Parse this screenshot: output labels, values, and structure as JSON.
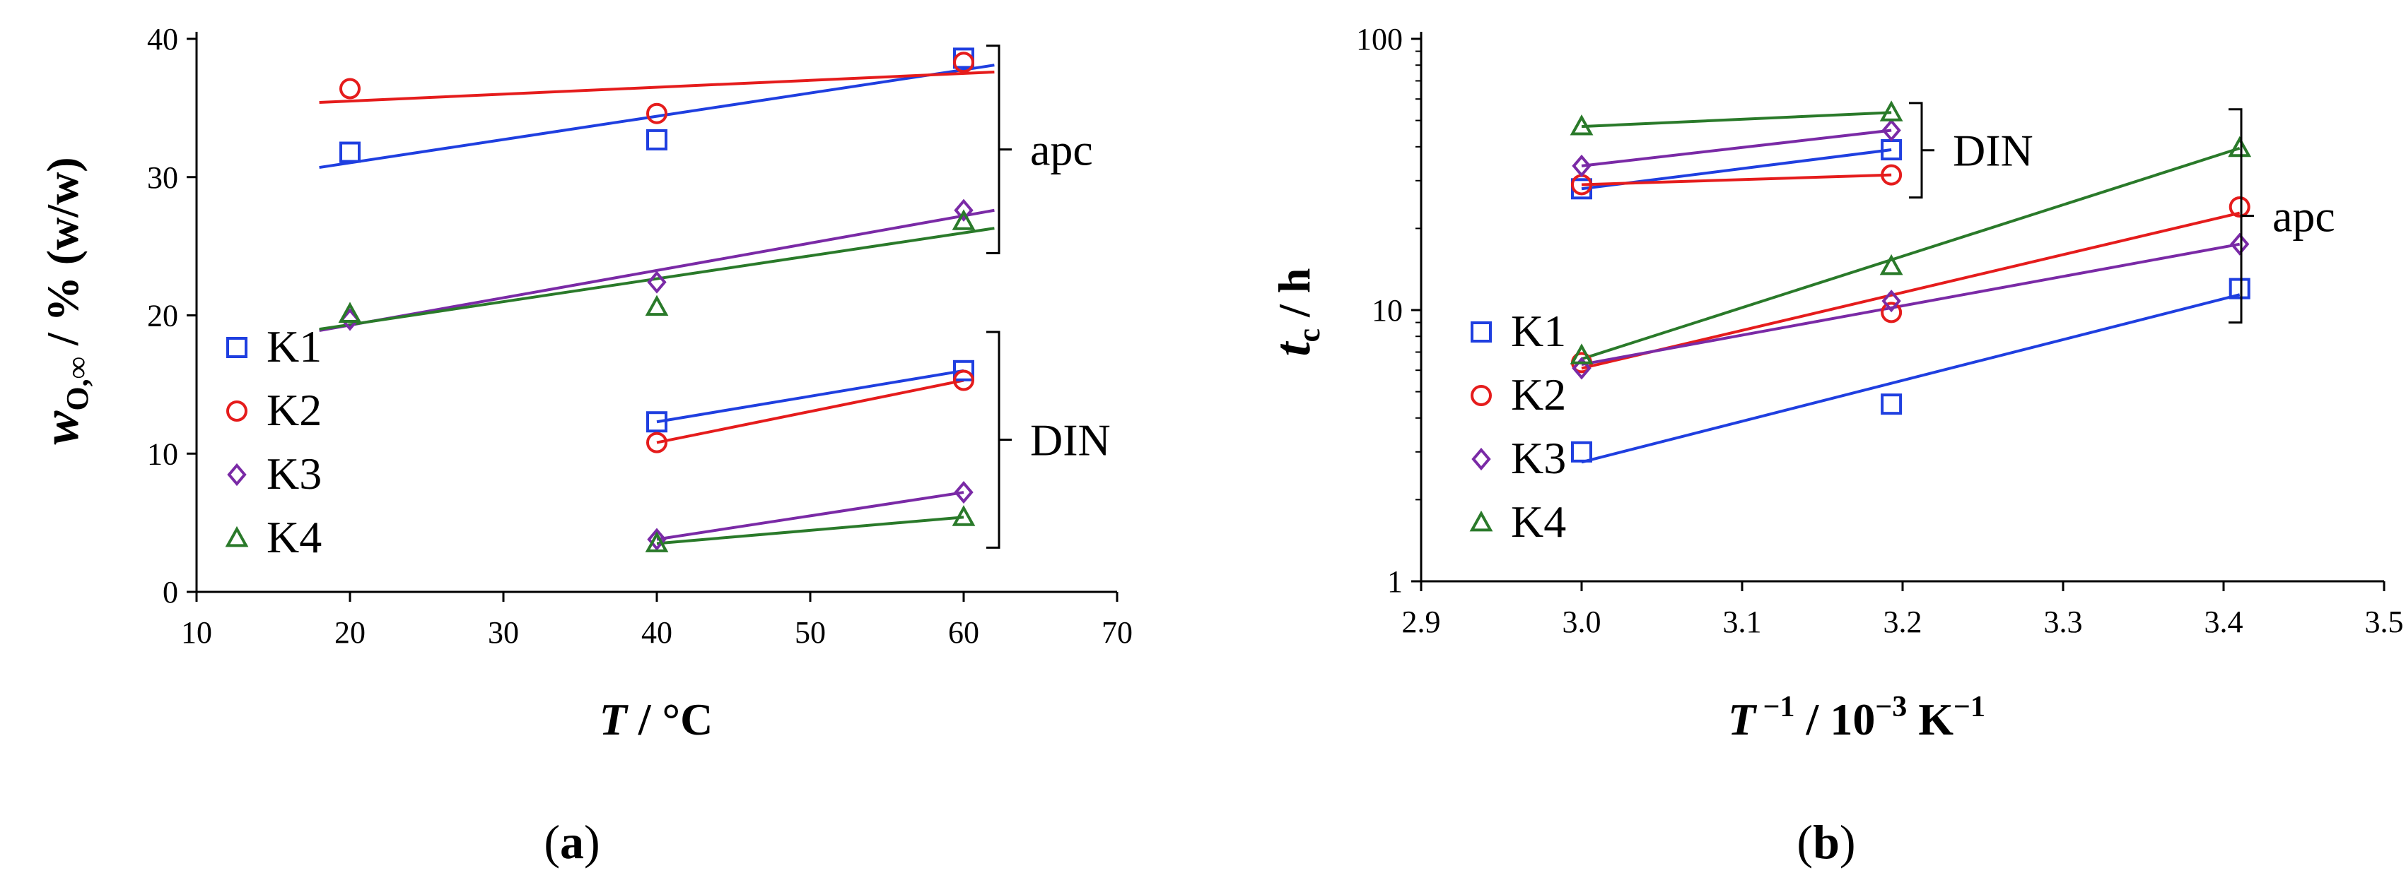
{
  "colors": {
    "K1": "#1f3fe0",
    "K2": "#e51c1c",
    "K3": "#7a2aa6",
    "K4": "#2a7a2a"
  },
  "chart_data": [
    {
      "id": "a",
      "type": "scatter",
      "panel_label": {
        "open": "(",
        "letter": "a",
        "close": ")"
      },
      "xlabel": {
        "var": "T",
        "rest": " / °C"
      },
      "ylabel": {
        "var": "w",
        "sub": "O,∞",
        "rest": " / % (w/w)"
      },
      "xlim": [
        10,
        70
      ],
      "ylim": [
        0,
        40
      ],
      "xticks": [
        10,
        20,
        30,
        40,
        50,
        60,
        70
      ],
      "yticks": [
        0,
        10,
        20,
        30,
        40
      ],
      "legend_position": "left",
      "legend": [
        "K1",
        "K2",
        "K3",
        "K4"
      ],
      "groups": [
        {
          "label": "apc",
          "yrange": [
            24.5,
            39.5
          ]
        },
        {
          "label": "DIN",
          "yrange": [
            3.2,
            18.8
          ]
        }
      ],
      "series": [
        {
          "name": "K1",
          "group": "apc",
          "marker": "square",
          "x": [
            20,
            40,
            60
          ],
          "y": [
            31.8,
            32.7,
            38.6
          ],
          "fit": {
            "x": [
              18,
              62
            ],
            "y": [
              30.7,
              38.1
            ]
          }
        },
        {
          "name": "K2",
          "group": "apc",
          "marker": "circle",
          "x": [
            20,
            40,
            60
          ],
          "y": [
            36.4,
            34.6,
            38.3
          ],
          "fit": {
            "x": [
              18,
              62
            ],
            "y": [
              35.4,
              37.6
            ]
          }
        },
        {
          "name": "K3",
          "group": "apc",
          "marker": "diamond",
          "x": [
            20,
            40,
            60
          ],
          "y": [
            19.7,
            22.4,
            27.6
          ],
          "fit": {
            "x": [
              18,
              62
            ],
            "y": [
              18.9,
              27.6
            ]
          }
        },
        {
          "name": "K4",
          "group": "apc",
          "marker": "triangle",
          "x": [
            20,
            40,
            60
          ],
          "y": [
            20.1,
            20.6,
            26.8
          ],
          "fit": {
            "x": [
              18,
              62
            ],
            "y": [
              19.0,
              26.3
            ]
          }
        },
        {
          "name": "K1",
          "group": "DIN",
          "marker": "square",
          "x": [
            40,
            60
          ],
          "y": [
            12.3,
            16.0
          ],
          "fit": {
            "x": [
              40,
              60
            ],
            "y": [
              12.3,
              16.0
            ]
          }
        },
        {
          "name": "K2",
          "group": "DIN",
          "marker": "circle",
          "x": [
            40,
            60
          ],
          "y": [
            10.8,
            15.3
          ],
          "fit": {
            "x": [
              40,
              60
            ],
            "y": [
              10.8,
              15.3
            ]
          }
        },
        {
          "name": "K3",
          "group": "DIN",
          "marker": "diamond",
          "x": [
            40,
            60
          ],
          "y": [
            3.8,
            7.2
          ],
          "fit": {
            "x": [
              40,
              60
            ],
            "y": [
              3.8,
              7.2
            ]
          }
        },
        {
          "name": "K4",
          "group": "DIN",
          "marker": "triangle",
          "x": [
            40,
            60
          ],
          "y": [
            3.5,
            5.4
          ],
          "fit": {
            "x": [
              40,
              60
            ],
            "y": [
              3.5,
              5.4
            ]
          }
        }
      ]
    },
    {
      "id": "b",
      "type": "scatter",
      "panel_label": {
        "open": "(",
        "letter": "b",
        "close": ")"
      },
      "xlabel": {
        "var": "T",
        "sup1": " −1",
        "rest": " / 10",
        "sup2": "−3",
        "tail": " K",
        "sup3": "−1"
      },
      "ylabel": {
        "var": "t",
        "sub": "c",
        "rest": " / h"
      },
      "xlim": [
        2.9,
        3.5
      ],
      "ylim": [
        1,
        100
      ],
      "yscale": "log",
      "xticks": [
        "2.9",
        "3.0",
        "3.1",
        "3.2",
        "3.3",
        "3.4",
        "3.5"
      ],
      "yticks": [
        1,
        10,
        100
      ],
      "legend_position": "left",
      "legend": [
        "K1",
        "K2",
        "K3",
        "K4"
      ],
      "groups": [
        {
          "label": "DIN",
          "yrange": [
            26,
            58
          ]
        },
        {
          "label": "apc",
          "yrange": [
            9,
            55
          ]
        }
      ],
      "series": [
        {
          "name": "K1",
          "group": "DIN",
          "marker": "square",
          "x": [
            3.0,
            3.193
          ],
          "y": [
            28,
            39
          ],
          "fit": {
            "x": [
              3.0,
              3.193
            ],
            "y": [
              28,
              39
            ]
          }
        },
        {
          "name": "K2",
          "group": "DIN",
          "marker": "circle",
          "x": [
            3.0,
            3.193
          ],
          "y": [
            29,
            31.5
          ],
          "fit": {
            "x": [
              3.0,
              3.193
            ],
            "y": [
              29,
              31.5
            ]
          }
        },
        {
          "name": "K3",
          "group": "DIN",
          "marker": "diamond",
          "x": [
            3.0,
            3.193
          ],
          "y": [
            34,
            46
          ],
          "fit": {
            "x": [
              3.0,
              3.193
            ],
            "y": [
              34,
              46
            ]
          }
        },
        {
          "name": "K4",
          "group": "DIN",
          "marker": "triangle",
          "x": [
            3.0,
            3.193
          ],
          "y": [
            47.5,
            53.5
          ],
          "fit": {
            "x": [
              3.0,
              3.193
            ],
            "y": [
              47.5,
              53.5
            ]
          }
        },
        {
          "name": "K1",
          "group": "apc",
          "marker": "square",
          "x": [
            3.0,
            3.193,
            3.41
          ],
          "y": [
            3.0,
            4.5,
            12.0
          ],
          "fit": {
            "x": [
              3.0,
              3.41
            ],
            "y": [
              2.75,
              11.4
            ]
          }
        },
        {
          "name": "K2",
          "group": "apc",
          "marker": "circle",
          "x": [
            3.0,
            3.193,
            3.41
          ],
          "y": [
            6.4,
            9.8,
            24.0
          ],
          "fit": {
            "x": [
              3.0,
              3.41
            ],
            "y": [
              6.1,
              22.8
            ]
          }
        },
        {
          "name": "K3",
          "group": "apc",
          "marker": "diamond",
          "x": [
            3.0,
            3.193,
            3.41
          ],
          "y": [
            6.1,
            10.8,
            17.5
          ],
          "fit": {
            "x": [
              3.0,
              3.41
            ],
            "y": [
              6.3,
              17.5
            ]
          }
        },
        {
          "name": "K4",
          "group": "apc",
          "marker": "triangle",
          "x": [
            3.0,
            3.193,
            3.41
          ],
          "y": [
            6.8,
            14.5,
            39.5
          ],
          "fit": {
            "x": [
              3.0,
              3.41
            ],
            "y": [
              6.6,
              39.5
            ]
          }
        }
      ]
    }
  ]
}
